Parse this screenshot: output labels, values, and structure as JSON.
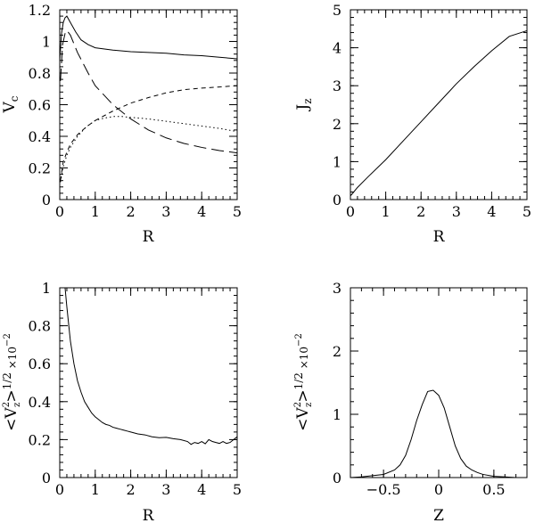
{
  "chart_data": [
    {
      "id": "vc",
      "type": "line",
      "xlabel": "R",
      "ylabel": "V_c",
      "xlim": [
        0,
        5
      ],
      "ylim": [
        0,
        1.2
      ],
      "xticks": [
        0,
        1,
        2,
        3,
        4,
        5
      ],
      "yticks": [
        0,
        0.2,
        0.4,
        0.6,
        0.8,
        1,
        1.2
      ],
      "xtick_labels": [
        "0",
        "1",
        "2",
        "3",
        "4",
        "5"
      ],
      "ytick_labels": [
        "0",
        "0.2",
        "0.4",
        "0.6",
        "0.8",
        "1",
        "1.2"
      ],
      "series": [
        {
          "style": "solid",
          "x": [
            0,
            0.05,
            0.1,
            0.15,
            0.2,
            0.3,
            0.45,
            0.6,
            0.8,
            1,
            1.5,
            2,
            2.5,
            3,
            3.5,
            4,
            4.5,
            5
          ],
          "y": [
            0.88,
            1.05,
            1.12,
            1.15,
            1.16,
            1.12,
            1.06,
            1.01,
            0.98,
            0.96,
            0.945,
            0.935,
            0.93,
            0.925,
            0.915,
            0.91,
            0.9,
            0.89
          ]
        },
        {
          "style": "long-dash",
          "x": [
            0.02,
            0.08,
            0.15,
            0.2,
            0.3,
            0.5,
            0.8,
            1,
            1.5,
            2,
            2.5,
            3,
            3.5,
            4,
            4.5,
            5
          ],
          "y": [
            0.75,
            0.98,
            1.05,
            1.07,
            1.04,
            0.93,
            0.8,
            0.72,
            0.6,
            0.51,
            0.44,
            0.39,
            0.355,
            0.33,
            0.31,
            0.295
          ]
        },
        {
          "style": "short-dash",
          "x": [
            0.02,
            0.1,
            0.2,
            0.3,
            0.5,
            0.75,
            1,
            1.5,
            2,
            2.5,
            3,
            3.5,
            4,
            4.5,
            5
          ],
          "y": [
            0.12,
            0.24,
            0.3,
            0.35,
            0.41,
            0.46,
            0.5,
            0.56,
            0.61,
            0.645,
            0.675,
            0.695,
            0.705,
            0.712,
            0.72
          ]
        },
        {
          "style": "dotted",
          "x": [
            0.02,
            0.1,
            0.2,
            0.3,
            0.5,
            0.75,
            1,
            1.25,
            1.5,
            1.75,
            2,
            2.5,
            3,
            3.5,
            4,
            4.5,
            5
          ],
          "y": [
            0.11,
            0.21,
            0.28,
            0.33,
            0.4,
            0.46,
            0.5,
            0.515,
            0.525,
            0.525,
            0.52,
            0.51,
            0.495,
            0.48,
            0.465,
            0.45,
            0.43
          ]
        }
      ]
    },
    {
      "id": "jz",
      "type": "line",
      "xlabel": "R",
      "ylabel": "J_z",
      "xlim": [
        0,
        5
      ],
      "ylim": [
        0,
        5
      ],
      "xticks": [
        0,
        1,
        2,
        3,
        4,
        5
      ],
      "yticks": [
        0,
        1,
        2,
        3,
        4,
        5
      ],
      "xtick_labels": [
        "0",
        "1",
        "2",
        "3",
        "4",
        "5"
      ],
      "ytick_labels": [
        "0",
        "1",
        "2",
        "3",
        "4",
        "5"
      ],
      "series": [
        {
          "style": "solid",
          "x": [
            0,
            0.05,
            0.2,
            0.5,
            1,
            1.5,
            2,
            2.5,
            3,
            3.5,
            4,
            4.5,
            5
          ],
          "y": [
            0.1,
            0.15,
            0.32,
            0.6,
            1.05,
            1.55,
            2.05,
            2.55,
            3.05,
            3.5,
            3.92,
            4.3,
            4.45
          ]
        }
      ]
    },
    {
      "id": "vz-r",
      "type": "line",
      "xlabel": "R",
      "ylabel": "<V_z^2>^1/2 x10^-2",
      "xlim": [
        0,
        5
      ],
      "ylim": [
        0,
        1
      ],
      "xticks": [
        0,
        1,
        2,
        3,
        4,
        5
      ],
      "yticks": [
        0,
        0.2,
        0.4,
        0.6,
        0.8,
        1
      ],
      "xtick_labels": [
        "0",
        "1",
        "2",
        "3",
        "4",
        "5"
      ],
      "ytick_labels": [
        "0",
        "0.2",
        "0.4",
        "0.6",
        "0.8",
        "1"
      ],
      "series": [
        {
          "style": "solid",
          "x": [
            0.15,
            0.2,
            0.3,
            0.4,
            0.5,
            0.6,
            0.7,
            0.8,
            0.9,
            1,
            1.1,
            1.2,
            1.3,
            1.4,
            1.5,
            1.6,
            1.7,
            1.8,
            1.9,
            2,
            2.2,
            2.4,
            2.6,
            2.8,
            3,
            3.2,
            3.4,
            3.6,
            3.7,
            3.8,
            3.9,
            4,
            4.1,
            4.2,
            4.3,
            4.4,
            4.5,
            4.6,
            4.7,
            4.8,
            4.9,
            5
          ],
          "y": [
            1.0,
            0.9,
            0.72,
            0.6,
            0.51,
            0.45,
            0.4,
            0.37,
            0.34,
            0.32,
            0.305,
            0.29,
            0.28,
            0.275,
            0.265,
            0.26,
            0.255,
            0.25,
            0.245,
            0.24,
            0.23,
            0.225,
            0.215,
            0.21,
            0.212,
            0.205,
            0.2,
            0.19,
            0.175,
            0.185,
            0.18,
            0.19,
            0.178,
            0.2,
            0.19,
            0.185,
            0.18,
            0.19,
            0.18,
            0.185,
            0.2,
            0.215
          ]
        }
      ]
    },
    {
      "id": "vz-z",
      "type": "line",
      "xlabel": "Z",
      "ylabel": "<V_z^2>^1/2 x10^-2",
      "xlim": [
        -0.8,
        0.8
      ],
      "ylim": [
        0,
        3
      ],
      "xticks": [
        -0.5,
        0,
        0.5
      ],
      "yticks": [
        0,
        1,
        2,
        3
      ],
      "xtick_labels": [
        "−0.5",
        "0",
        "0.5"
      ],
      "ytick_labels": [
        "0",
        "1",
        "2",
        "3"
      ],
      "series": [
        {
          "style": "solid",
          "x": [
            -0.8,
            -0.7,
            -0.6,
            -0.5,
            -0.4,
            -0.35,
            -0.3,
            -0.25,
            -0.2,
            -0.15,
            -0.1,
            -0.05,
            0,
            0.05,
            0.1,
            0.15,
            0.2,
            0.25,
            0.3,
            0.35,
            0.4,
            0.5,
            0.6,
            0.7,
            0.8
          ],
          "y": [
            0,
            0.01,
            0.03,
            0.05,
            0.12,
            0.2,
            0.35,
            0.6,
            0.9,
            1.15,
            1.36,
            1.38,
            1.3,
            1.1,
            0.8,
            0.5,
            0.3,
            0.18,
            0.12,
            0.08,
            0.05,
            0.02,
            0.01,
            0.0,
            0.0
          ]
        }
      ]
    }
  ]
}
